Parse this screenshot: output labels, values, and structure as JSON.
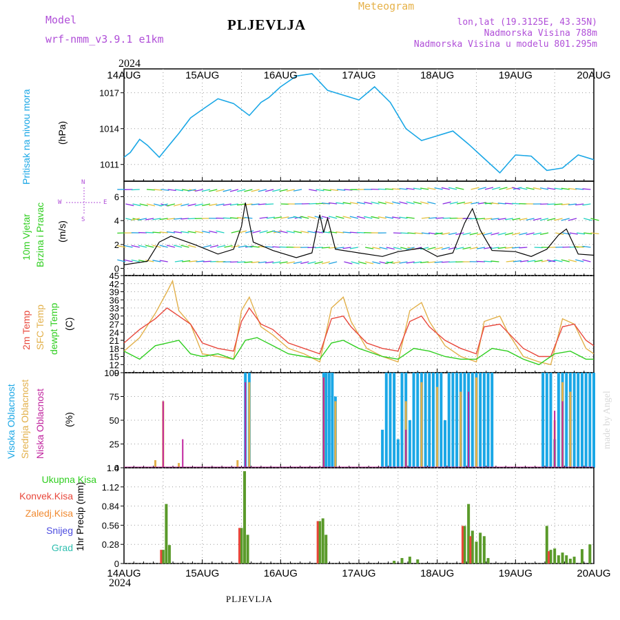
{
  "header": {
    "model_label": "Model",
    "model_name": "wrf-nmm_v3.9.1 e1km",
    "title": "PLJEVLJA",
    "meteogram": "Meteogram",
    "lonlat": "lon,lat (19.3125E, 43.35N)",
    "altitude": "Nadmorska Visina 788m",
    "model_altitude": "Nadmorska Visina u modelu 801.295m",
    "year_top": "2024",
    "year_bottom": "2024",
    "footer": "PLJEVLJA",
    "watermark": "made by Angel"
  },
  "colors": {
    "pressure": "#1aa7e6",
    "wind_speed": "#000000",
    "temp2m": "#e8473b",
    "sfc_temp": "#e2b04a",
    "dewpoint": "#2fce1f",
    "high_cloud": "#1aa7e6",
    "mid_cloud": "#e2b04a",
    "low_cloud": "#c0229e",
    "total_precip": "#5a9a2a",
    "convective": "#e8473b",
    "snow": "#4b4be0",
    "hail": "#2fbfb0"
  },
  "panel_labels": {
    "pressure": [
      "Pritisak na nivou mora",
      "(hPa)"
    ],
    "wind": [
      "10m Vjetar",
      "Brzina i Pravac",
      "(m/s)"
    ],
    "wind_rose": {
      "n": "N",
      "s": "S",
      "w": "W",
      "e": "E"
    },
    "temp": [
      "2m Temp",
      "SFC Temp",
      "dewpt Temp",
      "(C)"
    ],
    "cloud": [
      "Visoka Oblacnost",
      "Srednja Oblacnost",
      "Niska Oblacnost",
      "(%)"
    ],
    "precip_legend": [
      "Ukupna Kisa",
      "Konvek.Kisa",
      "Zaledj.Kisa",
      "Snijeg",
      "Grad"
    ],
    "precip_unit": "1hr Precip (mm)"
  },
  "chart_data": [
    {
      "type": "line",
      "name": "pressure",
      "x_days": [
        "14AUG",
        "15AUG",
        "16AUG",
        "17AUG",
        "18AUG",
        "19AUG",
        "20AUG"
      ],
      "ylabel": "(hPa)",
      "yticks": [
        1011,
        1014,
        1017
      ],
      "ylim": [
        1009.6,
        1019
      ],
      "series": [
        {
          "x": [
            0,
            0.08,
            0.2,
            0.3,
            0.45,
            0.55,
            0.7,
            0.85,
            1.0,
            1.2,
            1.4,
            1.6,
            1.75,
            1.85,
            2.0,
            2.2,
            2.4,
            2.6,
            2.8,
            3.0,
            3.2,
            3.4,
            3.6,
            3.8,
            4.0,
            4.2,
            4.4,
            4.6,
            4.8,
            5.0,
            5.2,
            5.4,
            5.6,
            5.8,
            6.0
          ],
          "y": [
            1011.6,
            1012.0,
            1013.1,
            1012.6,
            1011.6,
            1012.4,
            1013.6,
            1014.9,
            1015.6,
            1016.5,
            1016.1,
            1015.1,
            1016.2,
            1016.6,
            1017.5,
            1018.4,
            1018.6,
            1017.2,
            1016.8,
            1016.4,
            1017.5,
            1016.2,
            1014.0,
            1013.0,
            1013.4,
            1013.8,
            1012.7,
            1011.5,
            1010.3,
            1011.8,
            1011.7,
            1010.5,
            1010.7,
            1011.8,
            1011.4
          ]
        }
      ]
    },
    {
      "type": "line",
      "name": "wind",
      "ylabel": "(m/s)",
      "yticks": [
        0,
        2,
        4,
        6
      ],
      "ylim": [
        -0.6,
        7.3
      ],
      "series": [
        {
          "x": [
            0,
            0.3,
            0.45,
            0.6,
            0.9,
            1.2,
            1.4,
            1.5,
            1.55,
            1.65,
            1.9,
            2.2,
            2.4,
            2.5,
            2.55,
            2.6,
            2.7,
            3.0,
            3.3,
            3.5,
            3.8,
            4.0,
            4.2,
            4.35,
            4.45,
            4.55,
            4.7,
            5.0,
            5.2,
            5.4,
            5.55,
            5.65,
            5.8,
            6.0
          ],
          "y": [
            0.3,
            0.6,
            2.2,
            2.7,
            2.0,
            1.2,
            1.6,
            3.5,
            5.5,
            2.2,
            1.5,
            0.9,
            1.3,
            4.5,
            3.0,
            4.2,
            1.6,
            1.3,
            1.0,
            1.4,
            1.7,
            1.0,
            1.3,
            3.8,
            5.0,
            3.2,
            1.5,
            1.4,
            1.0,
            1.6,
            2.8,
            3.3,
            1.2,
            1.1
          ]
        }
      ]
    },
    {
      "type": "line",
      "name": "temperature",
      "ylabel": "(C)",
      "yticks": [
        9,
        12,
        15,
        18,
        21,
        24,
        27,
        30,
        33,
        36,
        39,
        42,
        45
      ],
      "ylim": [
        9,
        45
      ],
      "series": [
        {
          "key": "temp2m",
          "x": [
            0,
            0.2,
            0.4,
            0.55,
            0.7,
            0.85,
            1.0,
            1.2,
            1.4,
            1.5,
            1.6,
            1.75,
            1.9,
            2.1,
            2.3,
            2.5,
            2.65,
            2.8,
            2.9,
            3.1,
            3.3,
            3.5,
            3.65,
            3.8,
            3.9,
            4.1,
            4.3,
            4.5,
            4.6,
            4.8,
            4.9,
            5.1,
            5.3,
            5.45,
            5.6,
            5.75,
            5.9,
            6.0
          ],
          "y": [
            20,
            25,
            29,
            33,
            30,
            27,
            20,
            18,
            17,
            28,
            33,
            27,
            25,
            20,
            18,
            16,
            29,
            30,
            26,
            20,
            18,
            17,
            28,
            30,
            26,
            21,
            18,
            16,
            26,
            27,
            24,
            18,
            15,
            15,
            26,
            27,
            21,
            19
          ]
        },
        {
          "key": "sfc_temp",
          "x": [
            0,
            0.2,
            0.4,
            0.55,
            0.62,
            0.7,
            0.85,
            1.0,
            1.2,
            1.4,
            1.5,
            1.6,
            1.75,
            1.9,
            2.1,
            2.3,
            2.5,
            2.65,
            2.8,
            2.9,
            3.1,
            3.3,
            3.5,
            3.65,
            3.8,
            3.9,
            4.1,
            4.3,
            4.5,
            4.6,
            4.8,
            4.9,
            5.1,
            5.3,
            5.45,
            5.6,
            5.75,
            5.9,
            6.0
          ],
          "y": [
            17,
            22,
            31,
            39,
            43,
            32,
            27,
            16,
            15,
            14,
            32,
            37,
            26,
            23,
            18,
            16,
            13,
            33,
            37,
            28,
            18,
            15,
            13,
            32,
            35,
            28,
            19,
            15,
            13,
            28,
            30,
            24,
            15,
            13,
            12,
            29,
            27,
            18,
            16
          ]
        },
        {
          "key": "dewpoint",
          "x": [
            0,
            0.2,
            0.4,
            0.55,
            0.7,
            0.85,
            1.0,
            1.2,
            1.4,
            1.55,
            1.7,
            1.9,
            2.1,
            2.3,
            2.5,
            2.65,
            2.8,
            3.0,
            3.3,
            3.5,
            3.7,
            3.9,
            4.1,
            4.3,
            4.5,
            4.7,
            4.9,
            5.1,
            5.3,
            5.5,
            5.7,
            5.9,
            6.0
          ],
          "y": [
            17,
            14,
            19,
            20,
            21,
            16,
            15,
            16,
            14,
            21,
            22,
            19,
            16,
            15,
            14,
            20,
            21,
            18,
            15,
            14,
            18,
            17,
            15,
            14,
            14,
            18,
            17,
            14,
            12,
            16,
            17,
            14,
            14
          ]
        }
      ]
    },
    {
      "type": "bar",
      "name": "cloud_cover",
      "ylabel": "(%)",
      "yticks": [
        0,
        25,
        50,
        75,
        100
      ],
      "ylim": [
        0,
        100
      ],
      "series": [
        {
          "key": "high_cloud",
          "x": [
            1.55,
            1.6,
            2.55,
            2.58,
            2.62,
            2.66,
            2.7,
            3.3,
            3.35,
            3.4,
            3.45,
            3.5,
            3.55,
            3.6,
            3.65,
            3.7,
            3.75,
            3.8,
            3.85,
            3.9,
            3.95,
            4.0,
            4.05,
            4.1,
            4.15,
            4.2,
            4.25,
            4.3,
            4.35,
            4.4,
            4.45,
            4.5,
            4.55,
            4.6,
            4.65,
            4.7,
            5.35,
            5.4,
            5.45,
            5.5,
            5.55,
            5.6,
            5.65,
            5.7,
            5.75,
            5.8,
            5.85,
            5.9,
            5.95,
            6.0
          ],
          "values": [
            100,
            100,
            100,
            100,
            100,
            100,
            75,
            40,
            100,
            100,
            100,
            30,
            100,
            100,
            50,
            100,
            100,
            100,
            100,
            100,
            100,
            100,
            100,
            50,
            100,
            100,
            100,
            100,
            100,
            100,
            100,
            100,
            100,
            100,
            100,
            100,
            100,
            100,
            100,
            30,
            100,
            100,
            100,
            100,
            100,
            100,
            100,
            100,
            100,
            100
          ]
        },
        {
          "key": "mid_cloud",
          "x": [
            0.4,
            0.5,
            0.7,
            1.45,
            1.6,
            2.55,
            2.7,
            3.6,
            3.8,
            4.0,
            4.3,
            4.5,
            5.5,
            5.6,
            5.7
          ],
          "values": [
            8,
            70,
            5,
            8,
            90,
            95,
            70,
            70,
            90,
            85,
            80,
            95,
            50,
            90,
            80
          ]
        },
        {
          "key": "low_cloud",
          "x": [
            0.5,
            0.75,
            1.55,
            2.55,
            3.6,
            4.4,
            5.5,
            5.6
          ],
          "values": [
            70,
            30,
            90,
            95,
            40,
            80,
            60,
            70
          ]
        }
      ]
    },
    {
      "type": "bar",
      "name": "precipitation",
      "ylabel": "1hr Precip (mm)",
      "yticks": [
        0,
        0.28,
        0.56,
        0.84,
        1.12,
        1.4
      ],
      "ylim": [
        0,
        1.4
      ],
      "series": [
        {
          "key": "total_precip",
          "x": [
            0.5,
            0.54,
            0.58,
            1.5,
            1.54,
            1.58,
            2.5,
            2.54,
            2.58,
            3.45,
            3.55,
            3.65,
            3.75,
            4.35,
            4.4,
            4.45,
            4.5,
            4.55,
            4.6,
            4.65,
            5.4,
            5.45,
            5.5,
            5.55,
            5.6,
            5.65,
            5.7,
            5.75,
            5.85,
            5.95
          ],
          "values": [
            0.2,
            0.87,
            0.27,
            0.52,
            1.35,
            0.42,
            0.62,
            0.66,
            0.42,
            0.04,
            0.08,
            0.1,
            0.06,
            0.55,
            0.87,
            0.48,
            0.32,
            0.45,
            0.4,
            0.08,
            0.55,
            0.2,
            0.22,
            0.12,
            0.16,
            0.12,
            0.07,
            0.1,
            0.21,
            0.28
          ]
        },
        {
          "key": "convective",
          "x": [
            0.5,
            1.5,
            2.5,
            4.35,
            4.45,
            5.45
          ],
          "values": [
            0.2,
            0.52,
            0.62,
            0.55,
            0.4,
            0.18
          ]
        }
      ]
    }
  ]
}
